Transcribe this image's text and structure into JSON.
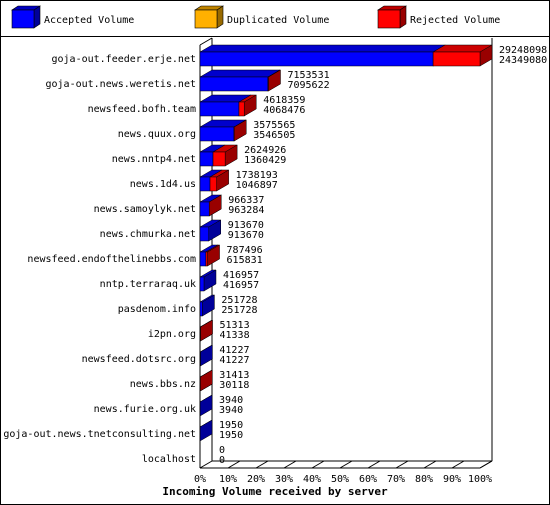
{
  "chart_data": {
    "type": "bar",
    "orientation": "horizontal",
    "xlabel": "Incoming Volume received by server",
    "categories": [
      "goja-out.feeder.erje.net",
      "goja-out.news.weretis.net",
      "newsfeed.bofh.team",
      "news.quux.org",
      "news.nntp4.net",
      "news.1d4.us",
      "news.samoylyk.net",
      "news.chmurka.net",
      "newsfeed.endofthelinebbs.com",
      "nntp.terraraq.uk",
      "pasdenom.info",
      "i2pn.org",
      "newsfeed.dotsrc.org",
      "news.bbs.nz",
      "news.furie.org.uk",
      "goja-out.news.tnetconsulting.net",
      "localhost"
    ],
    "offered": [
      29248098,
      7153531,
      4618359,
      3575565,
      2624926,
      1738193,
      966337,
      913670,
      787496,
      416957,
      251728,
      51313,
      41227,
      31413,
      3940,
      1950,
      0
    ],
    "series": [
      {
        "name": "Accepted Volume",
        "color": "#0000ff",
        "values": [
          24349080,
          7095622,
          4068476,
          3546505,
          1360429,
          1046897,
          963284,
          913670,
          615831,
          416957,
          251728,
          41338,
          41227,
          30118,
          3940,
          1950,
          0
        ]
      },
      {
        "name": "Duplicated Volume",
        "color": "#ffb000",
        "values": [
          0,
          0,
          0,
          0,
          0,
          0,
          0,
          0,
          0,
          0,
          0,
          0,
          0,
          0,
          0,
          0,
          0
        ]
      },
      {
        "name": "Rejected Volume",
        "color": "#ff0000",
        "values": [
          4899018,
          57909,
          549883,
          29060,
          1264497,
          691296,
          3053,
          0,
          171665,
          0,
          0,
          9975,
          0,
          1295,
          0,
          0,
          0
        ]
      }
    ],
    "xlim": [
      0,
      29248098
    ],
    "xticks": [
      {
        "value": 0,
        "label": "0%"
      },
      {
        "value": 2924809.8,
        "label": "10%"
      },
      {
        "value": 5849619.6,
        "label": "20%"
      },
      {
        "value": 8774429.4,
        "label": "30%"
      },
      {
        "value": 11699239.2,
        "label": "40%"
      },
      {
        "value": 14624049,
        "label": "50%"
      },
      {
        "value": 17548858.8,
        "label": "60%"
      },
      {
        "value": 20473668.6,
        "label": "70%"
      },
      {
        "value": 23398478.4,
        "label": "80%"
      },
      {
        "value": 26323288.2,
        "label": "90%"
      },
      {
        "value": 29248098,
        "label": "100%"
      }
    ]
  }
}
